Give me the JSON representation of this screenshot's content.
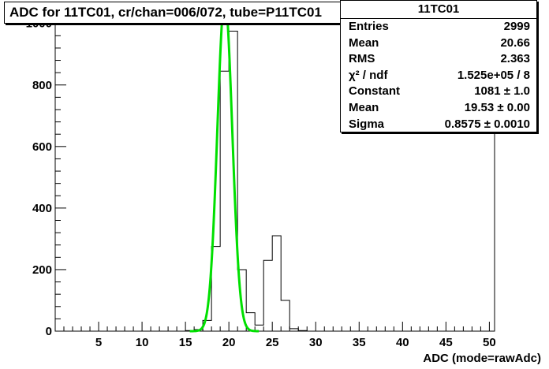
{
  "title": "ADC for 11TC01,  cr/chan=006/072,  tube=P11TC01",
  "stats": {
    "name": "11TC01",
    "rows": [
      {
        "label": "Entries",
        "value": "2999"
      },
      {
        "label": "Mean",
        "value": "20.66"
      },
      {
        "label": "RMS",
        "value": "2.363"
      },
      {
        "label": "χ² / ndf",
        "value": "1.525e+05 / 8"
      },
      {
        "label": "Constant",
        "value": "1081 ± 1.0"
      },
      {
        "label": "Mean",
        "value": "19.53 ± 0.00"
      },
      {
        "label": "Sigma",
        "value": "0.8575 ± 0.0010"
      }
    ]
  },
  "chart_data": {
    "type": "histogram",
    "xlabel": "ADC (mode=rawAdc)",
    "xlim": [
      0,
      50.6
    ],
    "ylim": [
      0,
      1030
    ],
    "xticks": [
      5,
      10,
      15,
      20,
      25,
      30,
      35,
      40,
      45,
      50
    ],
    "yticks": [
      0,
      200,
      400,
      600,
      800,
      1000
    ],
    "bin_width": 1,
    "bins": [
      {
        "x": 15,
        "count": 2
      },
      {
        "x": 16,
        "count": 5
      },
      {
        "x": 17,
        "count": 35
      },
      {
        "x": 18,
        "count": 275
      },
      {
        "x": 19,
        "count": 845
      },
      {
        "x": 20,
        "count": 975
      },
      {
        "x": 21,
        "count": 200
      },
      {
        "x": 22,
        "count": 60
      },
      {
        "x": 23,
        "count": 20
      },
      {
        "x": 24,
        "count": 230
      },
      {
        "x": 25,
        "count": 310
      },
      {
        "x": 26,
        "count": 100
      },
      {
        "x": 27,
        "count": 8
      },
      {
        "x": 28,
        "count": 2
      }
    ],
    "fit": {
      "function": "gaus",
      "constant": 1081,
      "mean": 19.53,
      "sigma": 0.8575,
      "color": "#00e000",
      "range": [
        15.5,
        23.5
      ]
    },
    "line_color": "#000000"
  }
}
